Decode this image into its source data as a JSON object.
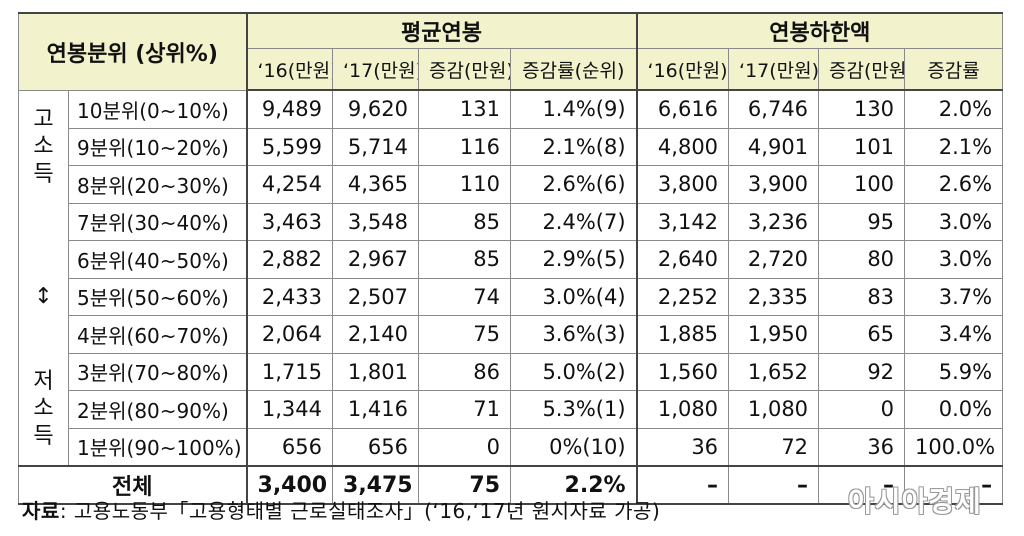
{
  "header": {
    "row_label": "연봉분위 (상위%)",
    "group_avg": "평균연봉",
    "group_min": "연봉하한액",
    "avg_cols": [
      "‘16(만원)",
      "‘17(만원)",
      "증감(만원)",
      "증감률(순위)"
    ],
    "min_cols": [
      "‘16(만원)",
      "‘17(만원)",
      "증감(만원)",
      "증감률"
    ]
  },
  "side": {
    "high": [
      "고",
      "소",
      "득"
    ],
    "arrow": "↕",
    "low": [
      "저",
      "소",
      "득"
    ]
  },
  "rows": [
    {
      "label": "10분위(0~10%)",
      "a16": "9,489",
      "a17": "9,620",
      "adiff": "131",
      "arate": "1.4%(9)",
      "m16": "6,616",
      "m17": "6,746",
      "mdiff": "130",
      "mrate": "2.0%"
    },
    {
      "label": "9분위(10~20%)",
      "a16": "5,599",
      "a17": "5,714",
      "adiff": "116",
      "arate": "2.1%(8)",
      "m16": "4,800",
      "m17": "4,901",
      "mdiff": "101",
      "mrate": "2.1%"
    },
    {
      "label": "8분위(20~30%)",
      "a16": "4,254",
      "a17": "4,365",
      "adiff": "110",
      "arate": "2.6%(6)",
      "m16": "3,800",
      "m17": "3,900",
      "mdiff": "100",
      "mrate": "2.6%"
    },
    {
      "label": "7분위(30~40%)",
      "a16": "3,463",
      "a17": "3,548",
      "adiff": "85",
      "arate": "2.4%(7)",
      "m16": "3,142",
      "m17": "3,236",
      "mdiff": "95",
      "mrate": "3.0%"
    },
    {
      "label": "6분위(40~50%)",
      "a16": "2,882",
      "a17": "2,967",
      "adiff": "85",
      "arate": "2.9%(5)",
      "m16": "2,640",
      "m17": "2,720",
      "mdiff": "80",
      "mrate": "3.0%"
    },
    {
      "label": "5분위(50~60%)",
      "a16": "2,433",
      "a17": "2,507",
      "adiff": "74",
      "arate": "3.0%(4)",
      "m16": "2,252",
      "m17": "2,335",
      "mdiff": "83",
      "mrate": "3.7%"
    },
    {
      "label": "4분위(60~70%)",
      "a16": "2,064",
      "a17": "2,140",
      "adiff": "75",
      "arate": "3.6%(3)",
      "m16": "1,885",
      "m17": "1,950",
      "mdiff": "65",
      "mrate": "3.4%"
    },
    {
      "label": "3분위(70~80%)",
      "a16": "1,715",
      "a17": "1,801",
      "adiff": "86",
      "arate": "5.0%(2)",
      "m16": "1,560",
      "m17": "1,652",
      "mdiff": "92",
      "mrate": "5.9%"
    },
    {
      "label": "2분위(80~90%)",
      "a16": "1,344",
      "a17": "1,416",
      "adiff": "71",
      "arate": "5.3%(1)",
      "m16": "1,080",
      "m17": "1,080",
      "mdiff": "0",
      "mrate": "0.0%"
    },
    {
      "label": "1분위(90~100%)",
      "a16": "656",
      "a17": "656",
      "adiff": "0",
      "arate": "0%(10)",
      "m16": "36",
      "m17": "72",
      "mdiff": "36",
      "mrate": "100.0%"
    }
  ],
  "total": {
    "label": "전체",
    "a16": "3,400",
    "a17": "3,475",
    "adiff": "75",
    "arate": "2.2%",
    "m16": "–",
    "m17": "–",
    "mdiff": "–",
    "mrate": "–"
  },
  "source": {
    "prefix": "자료",
    "text": ": 고용노동부「고용형태별 근로실태조사」(‘16,‘17년 원시자료 가공)"
  },
  "watermark": "아시아경제"
}
